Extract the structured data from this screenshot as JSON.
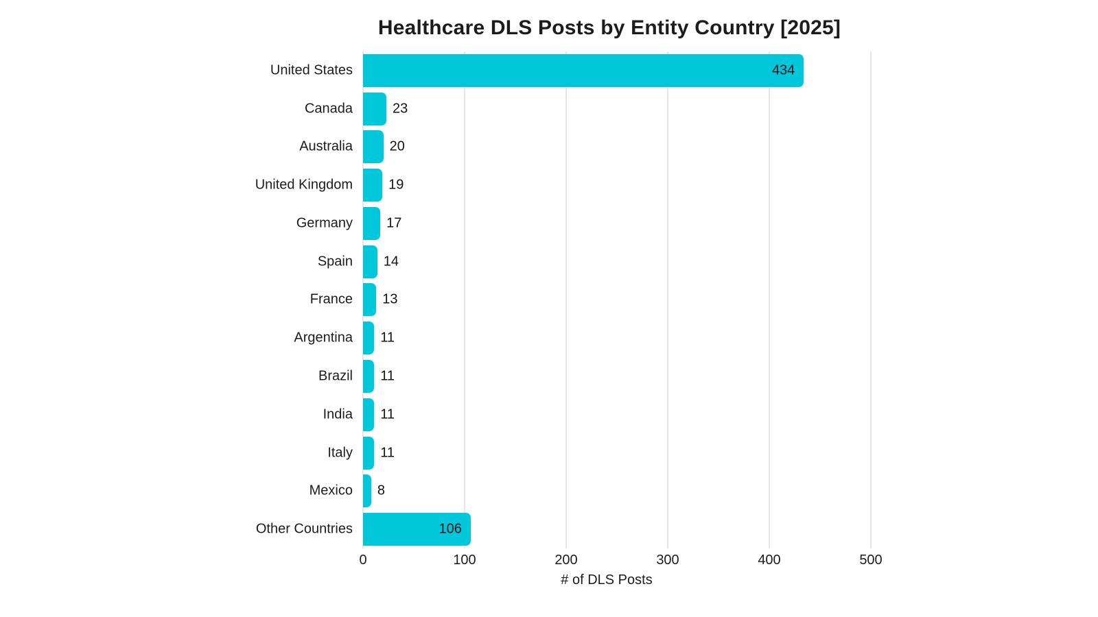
{
  "chart_data": {
    "type": "bar",
    "orientation": "horizontal",
    "title": "Healthcare DLS Posts by Entity Country [2025]",
    "xlabel": "# of DLS Posts",
    "ylabel": "",
    "categories": [
      "United States",
      "Canada",
      "Australia",
      "United Kingdom",
      "Germany",
      "Spain",
      "France",
      "Argentina",
      "Brazil",
      "India",
      "Italy",
      "Mexico",
      "Other Countries"
    ],
    "values": [
      434,
      23,
      20,
      19,
      17,
      14,
      13,
      11,
      11,
      11,
      11,
      8,
      106
    ],
    "xlim": [
      0,
      500
    ],
    "x_ticks": [
      "0",
      "100",
      "200",
      "300",
      "400",
      "500"
    ],
    "grid": true,
    "legend": "none",
    "colors": {
      "bar": "#00C8DA",
      "gridline": "#e6e6e6",
      "text": "#1c1c1c",
      "background": "#ffffff"
    }
  }
}
